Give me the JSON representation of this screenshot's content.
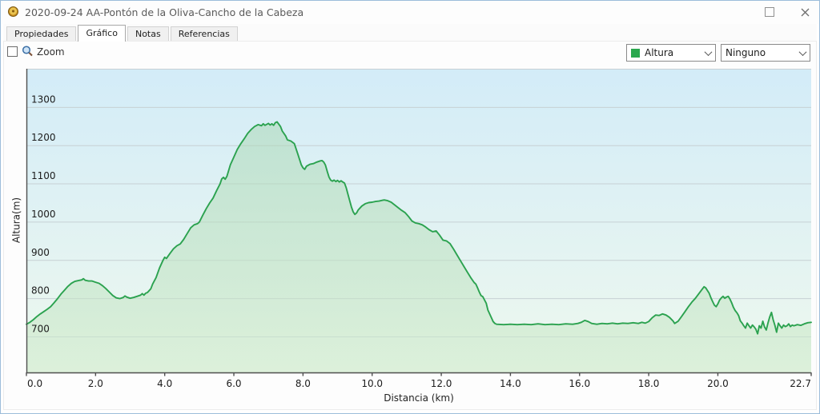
{
  "window": {
    "title": "2020-09-24 AA-Pontón de la Oliva-Cancho de la Cabeza"
  },
  "tabs": [
    {
      "label": "Propiedades",
      "active": false
    },
    {
      "label": "Gráfico",
      "active": true
    },
    {
      "label": "Notas",
      "active": false
    },
    {
      "label": "Referencias",
      "active": false
    }
  ],
  "toolbar": {
    "zoom_label": "Zoom",
    "zoom_checked": false,
    "series_select": {
      "value": "Altura",
      "swatch_color": "#2aa84e"
    },
    "secondary_select": {
      "value": "Ninguno"
    }
  },
  "chart_data": {
    "type": "area",
    "series_name": "Altura",
    "title": "",
    "xlabel": "Distancia (km)",
    "ylabel": "Altura(m)",
    "xlim": [
      0,
      22.7
    ],
    "ylim": [
      607,
      1401
    ],
    "grid": true,
    "yticks": [
      700,
      800,
      900,
      1000,
      1100,
      1200,
      1300
    ],
    "ytick_labels": [
      "700",
      "800",
      "900",
      "1000",
      "1100",
      "1200",
      "1300"
    ],
    "xticks": [
      0,
      2,
      4,
      6,
      8,
      10,
      12,
      14,
      16,
      18,
      20,
      22.7
    ],
    "xtick_labels": [
      "0.0",
      "2.0",
      "4.0",
      "6.0",
      "8.0",
      "10.0",
      "12.0",
      "14.0",
      "16.0",
      "18.0",
      "20.0",
      "22.7"
    ],
    "colors": {
      "line": "#2ba24f",
      "area_top": "rgba(167,214,176,0.50)",
      "area_bottom": "rgba(208,235,205,0.60)",
      "bg_top": "#d3ecf8",
      "bg_bottom": "#eef8ee",
      "grid": "#c7d0d4",
      "axis": "#4f4f4f"
    },
    "points": [
      [
        0,
        733
      ],
      [
        0.1,
        738
      ],
      [
        0.2,
        745
      ],
      [
        0.3,
        753
      ],
      [
        0.4,
        760
      ],
      [
        0.5,
        766
      ],
      [
        0.6,
        772
      ],
      [
        0.7,
        779
      ],
      [
        0.8,
        789
      ],
      [
        0.9,
        800
      ],
      [
        1.0,
        812
      ],
      [
        1.1,
        822
      ],
      [
        1.2,
        832
      ],
      [
        1.3,
        840
      ],
      [
        1.4,
        845
      ],
      [
        1.5,
        847
      ],
      [
        1.6,
        849
      ],
      [
        1.65,
        852
      ],
      [
        1.7,
        848
      ],
      [
        1.8,
        846
      ],
      [
        1.9,
        846
      ],
      [
        2.0,
        843
      ],
      [
        2.1,
        840
      ],
      [
        2.2,
        834
      ],
      [
        2.3,
        826
      ],
      [
        2.4,
        817
      ],
      [
        2.5,
        808
      ],
      [
        2.6,
        802
      ],
      [
        2.7,
        800
      ],
      [
        2.8,
        803
      ],
      [
        2.85,
        807
      ],
      [
        2.9,
        804
      ],
      [
        3.0,
        801
      ],
      [
        3.1,
        803
      ],
      [
        3.2,
        806
      ],
      [
        3.3,
        809
      ],
      [
        3.35,
        813
      ],
      [
        3.4,
        809
      ],
      [
        3.45,
        814
      ],
      [
        3.5,
        816
      ],
      [
        3.6,
        826
      ],
      [
        3.65,
        838
      ],
      [
        3.75,
        855
      ],
      [
        3.85,
        880
      ],
      [
        3.95,
        900
      ],
      [
        4.0,
        908
      ],
      [
        4.05,
        905
      ],
      [
        4.15,
        918
      ],
      [
        4.25,
        930
      ],
      [
        4.35,
        938
      ],
      [
        4.45,
        943
      ],
      [
        4.55,
        955
      ],
      [
        4.65,
        970
      ],
      [
        4.75,
        985
      ],
      [
        4.85,
        993
      ],
      [
        4.95,
        996
      ],
      [
        5.0,
        1000
      ],
      [
        5.1,
        1018
      ],
      [
        5.2,
        1035
      ],
      [
        5.3,
        1050
      ],
      [
        5.4,
        1063
      ],
      [
        5.5,
        1082
      ],
      [
        5.6,
        1100
      ],
      [
        5.65,
        1113
      ],
      [
        5.7,
        1117
      ],
      [
        5.75,
        1112
      ],
      [
        5.8,
        1120
      ],
      [
        5.9,
        1150
      ],
      [
        6.0,
        1170
      ],
      [
        6.1,
        1190
      ],
      [
        6.2,
        1205
      ],
      [
        6.3,
        1218
      ],
      [
        6.4,
        1232
      ],
      [
        6.5,
        1242
      ],
      [
        6.6,
        1250
      ],
      [
        6.7,
        1255
      ],
      [
        6.8,
        1252
      ],
      [
        6.85,
        1257
      ],
      [
        6.9,
        1253
      ],
      [
        7.0,
        1258
      ],
      [
        7.05,
        1254
      ],
      [
        7.1,
        1257
      ],
      [
        7.15,
        1253
      ],
      [
        7.2,
        1260
      ],
      [
        7.25,
        1262
      ],
      [
        7.3,
        1256
      ],
      [
        7.35,
        1250
      ],
      [
        7.4,
        1238
      ],
      [
        7.5,
        1225
      ],
      [
        7.55,
        1215
      ],
      [
        7.65,
        1212
      ],
      [
        7.75,
        1205
      ],
      [
        7.85,
        1178
      ],
      [
        7.95,
        1150
      ],
      [
        8.0,
        1142
      ],
      [
        8.05,
        1138
      ],
      [
        8.1,
        1146
      ],
      [
        8.2,
        1151
      ],
      [
        8.3,
        1153
      ],
      [
        8.4,
        1157
      ],
      [
        8.5,
        1160
      ],
      [
        8.55,
        1161
      ],
      [
        8.6,
        1157
      ],
      [
        8.65,
        1149
      ],
      [
        8.7,
        1133
      ],
      [
        8.75,
        1118
      ],
      [
        8.8,
        1110
      ],
      [
        8.85,
        1107
      ],
      [
        8.9,
        1110
      ],
      [
        8.95,
        1106
      ],
      [
        9.0,
        1109
      ],
      [
        9.05,
        1105
      ],
      [
        9.1,
        1108
      ],
      [
        9.15,
        1105
      ],
      [
        9.2,
        1102
      ],
      [
        9.25,
        1090
      ],
      [
        9.3,
        1073
      ],
      [
        9.35,
        1056
      ],
      [
        9.4,
        1040
      ],
      [
        9.45,
        1027
      ],
      [
        9.5,
        1020
      ],
      [
        9.55,
        1024
      ],
      [
        9.6,
        1032
      ],
      [
        9.7,
        1042
      ],
      [
        9.8,
        1048
      ],
      [
        9.9,
        1051
      ],
      [
        10.0,
        1052
      ],
      [
        10.1,
        1054
      ],
      [
        10.2,
        1055
      ],
      [
        10.3,
        1057
      ],
      [
        10.35,
        1058
      ],
      [
        10.45,
        1056
      ],
      [
        10.55,
        1052
      ],
      [
        10.65,
        1045
      ],
      [
        10.75,
        1038
      ],
      [
        10.85,
        1031
      ],
      [
        10.95,
        1025
      ],
      [
        11.05,
        1015
      ],
      [
        11.15,
        1003
      ],
      [
        11.25,
        998
      ],
      [
        11.35,
        996
      ],
      [
        11.45,
        993
      ],
      [
        11.55,
        987
      ],
      [
        11.65,
        980
      ],
      [
        11.75,
        975
      ],
      [
        11.85,
        977
      ],
      [
        11.95,
        966
      ],
      [
        12.05,
        953
      ],
      [
        12.15,
        951
      ],
      [
        12.25,
        944
      ],
      [
        12.35,
        930
      ],
      [
        12.45,
        915
      ],
      [
        12.55,
        900
      ],
      [
        12.65,
        885
      ],
      [
        12.75,
        870
      ],
      [
        12.85,
        855
      ],
      [
        12.95,
        842
      ],
      [
        13.0,
        838
      ],
      [
        13.05,
        828
      ],
      [
        13.1,
        817
      ],
      [
        13.15,
        808
      ],
      [
        13.2,
        805
      ],
      [
        13.3,
        788
      ],
      [
        13.35,
        770
      ],
      [
        13.45,
        750
      ],
      [
        13.5,
        740
      ],
      [
        13.55,
        735
      ],
      [
        13.6,
        733
      ],
      [
        13.8,
        732
      ],
      [
        14.0,
        733
      ],
      [
        14.2,
        732
      ],
      [
        14.4,
        733
      ],
      [
        14.6,
        732
      ],
      [
        14.8,
        734
      ],
      [
        15.0,
        732
      ],
      [
        15.2,
        733
      ],
      [
        15.4,
        732
      ],
      [
        15.6,
        734
      ],
      [
        15.8,
        733
      ],
      [
        15.95,
        735
      ],
      [
        16.05,
        738
      ],
      [
        16.15,
        743
      ],
      [
        16.25,
        740
      ],
      [
        16.35,
        735
      ],
      [
        16.5,
        733
      ],
      [
        16.65,
        735
      ],
      [
        16.8,
        734
      ],
      [
        16.95,
        736
      ],
      [
        17.1,
        734
      ],
      [
        17.25,
        736
      ],
      [
        17.4,
        735
      ],
      [
        17.55,
        737
      ],
      [
        17.7,
        735
      ],
      [
        17.8,
        738
      ],
      [
        17.9,
        736
      ],
      [
        18.0,
        740
      ],
      [
        18.1,
        750
      ],
      [
        18.2,
        757
      ],
      [
        18.3,
        756
      ],
      [
        18.4,
        760
      ],
      [
        18.5,
        757
      ],
      [
        18.6,
        751
      ],
      [
        18.7,
        742
      ],
      [
        18.75,
        735
      ],
      [
        18.85,
        741
      ],
      [
        18.95,
        753
      ],
      [
        19.05,
        766
      ],
      [
        19.15,
        779
      ],
      [
        19.25,
        791
      ],
      [
        19.35,
        801
      ],
      [
        19.45,
        813
      ],
      [
        19.55,
        825
      ],
      [
        19.6,
        831
      ],
      [
        19.65,
        828
      ],
      [
        19.7,
        821
      ],
      [
        19.75,
        814
      ],
      [
        19.8,
        802
      ],
      [
        19.85,
        792
      ],
      [
        19.9,
        783
      ],
      [
        19.95,
        779
      ],
      [
        20.0,
        786
      ],
      [
        20.05,
        796
      ],
      [
        20.1,
        802
      ],
      [
        20.15,
        806
      ],
      [
        20.2,
        801
      ],
      [
        20.25,
        804
      ],
      [
        20.3,
        806
      ],
      [
        20.35,
        799
      ],
      [
        20.4,
        789
      ],
      [
        20.45,
        777
      ],
      [
        20.5,
        769
      ],
      [
        20.55,
        763
      ],
      [
        20.6,
        756
      ],
      [
        20.65,
        742
      ],
      [
        20.7,
        736
      ],
      [
        20.75,
        729
      ],
      [
        20.8,
        723
      ],
      [
        20.85,
        736
      ],
      [
        20.9,
        729
      ],
      [
        20.95,
        723
      ],
      [
        21.0,
        731
      ],
      [
        21.05,
        726
      ],
      [
        21.1,
        720
      ],
      [
        21.15,
        708
      ],
      [
        21.2,
        729
      ],
      [
        21.25,
        723
      ],
      [
        21.3,
        741
      ],
      [
        21.35,
        726
      ],
      [
        21.4,
        718
      ],
      [
        21.45,
        736
      ],
      [
        21.5,
        752
      ],
      [
        21.55,
        764
      ],
      [
        21.6,
        745
      ],
      [
        21.65,
        730
      ],
      [
        21.7,
        712
      ],
      [
        21.75,
        736
      ],
      [
        21.8,
        729
      ],
      [
        21.85,
        723
      ],
      [
        21.9,
        731
      ],
      [
        21.95,
        727
      ],
      [
        22.0,
        729
      ],
      [
        22.05,
        734
      ],
      [
        22.1,
        727
      ],
      [
        22.15,
        731
      ],
      [
        22.2,
        729
      ],
      [
        22.3,
        732
      ],
      [
        22.4,
        730
      ],
      [
        22.5,
        734
      ],
      [
        22.6,
        737
      ],
      [
        22.7,
        738
      ]
    ]
  }
}
